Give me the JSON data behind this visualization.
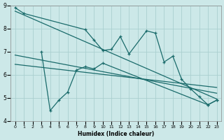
{
  "title": "",
  "xlabel": "Humidex (Indice chaleur)",
  "xlim": [
    -0.5,
    23.5
  ],
  "ylim": [
    4,
    9
  ],
  "xticks": [
    0,
    1,
    2,
    3,
    4,
    5,
    6,
    7,
    8,
    9,
    10,
    11,
    12,
    13,
    14,
    15,
    16,
    17,
    18,
    19,
    20,
    21,
    22,
    23
  ],
  "yticks": [
    4,
    5,
    6,
    7,
    8,
    9
  ],
  "bg_color": "#cce8e8",
  "line_color": "#1a6b6b",
  "grid_color": "#aacfcf",
  "s1x": [
    0,
    1,
    8,
    9,
    10,
    11,
    12,
    13,
    15,
    16,
    17,
    18,
    19,
    20,
    21,
    22,
    23
  ],
  "s1y": [
    8.9,
    8.65,
    7.95,
    7.5,
    7.05,
    7.1,
    7.65,
    6.9,
    7.9,
    7.8,
    6.55,
    6.8,
    5.8,
    5.4,
    5.05,
    4.7,
    4.9
  ],
  "s2x": [
    3,
    4,
    5,
    6,
    7,
    8,
    9,
    10,
    22,
    23
  ],
  "s2y": [
    7.0,
    4.45,
    4.9,
    5.25,
    6.2,
    6.35,
    6.25,
    6.5,
    4.7,
    4.9
  ],
  "tl1x": [
    0,
    23
  ],
  "tl1y": [
    8.75,
    4.95
  ],
  "tl2x": [
    0,
    23
  ],
  "tl2y": [
    6.85,
    5.2
  ],
  "tl3x": [
    0,
    23
  ],
  "tl3y": [
    6.45,
    5.45
  ]
}
